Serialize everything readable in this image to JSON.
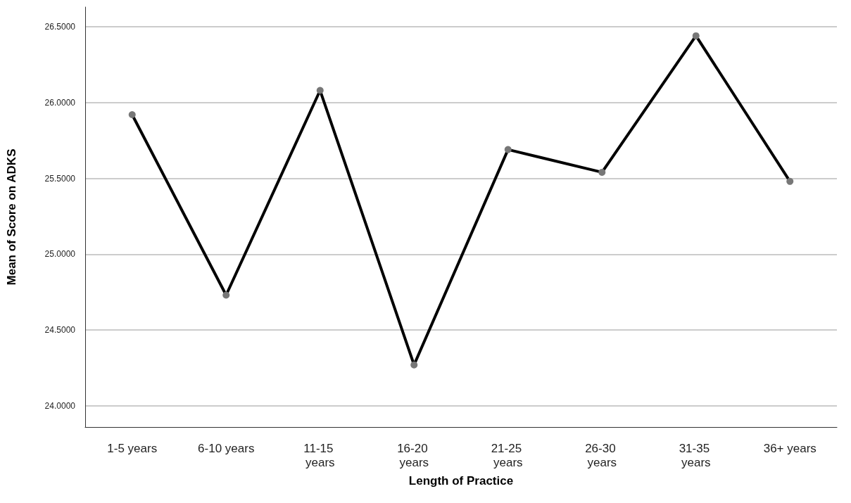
{
  "chart_data": {
    "type": "line",
    "xlabel": "Length of Practice",
    "ylabel": "Mean of Score on ADKS",
    "categories": [
      "1-5 years",
      "6-10 years",
      "11-15 years",
      "16-20 years",
      "21-25 years",
      "26-30 years",
      "31-35 years",
      "36+ years"
    ],
    "series": [
      {
        "color": "#000000",
        "values": [
          25.92,
          24.73,
          26.08,
          24.27,
          25.69,
          25.54,
          26.44,
          25.48
        ]
      }
    ],
    "ylim": [
      23.86,
      26.63
    ],
    "yticks": [
      {
        "value": 24,
        "label": "24.0000"
      },
      {
        "value": 24.5,
        "label": "24.5000"
      },
      {
        "value": 25,
        "label": "25.0000"
      },
      {
        "value": 25.5,
        "label": "25.5000"
      },
      {
        "value": 26,
        "label": "26.0000"
      },
      {
        "value": 26.5,
        "label": "26.5000"
      }
    ],
    "grid": "y",
    "marker": "circle",
    "line_style": "solid"
  }
}
